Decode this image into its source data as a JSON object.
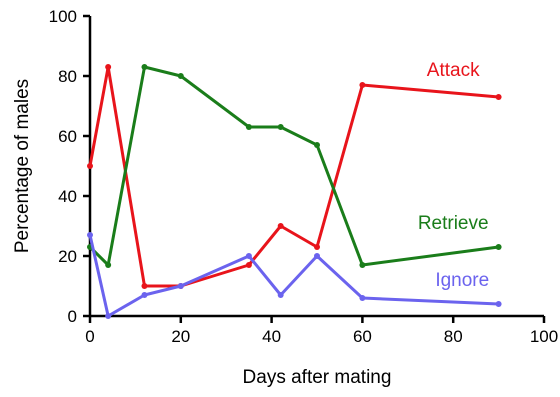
{
  "chart_data": {
    "type": "line",
    "xlabel": "Days after mating",
    "ylabel": "Percentage of males",
    "xlim": [
      0,
      100
    ],
    "ylim": [
      0,
      100
    ],
    "xticks": [
      0,
      20,
      40,
      60,
      80,
      100
    ],
    "yticks": [
      0,
      20,
      40,
      60,
      80,
      100
    ],
    "grid": false,
    "series": [
      {
        "name": "Attack",
        "color": "#e8141b",
        "x": [
          0,
          4,
          12,
          20,
          35,
          42,
          50,
          60,
          90
        ],
        "y": [
          50,
          83,
          10,
          10,
          17,
          30,
          23,
          77,
          73
        ],
        "label_at": [
          80,
          80
        ]
      },
      {
        "name": "Retrieve",
        "color": "#1a7d1a",
        "x": [
          0,
          4,
          12,
          20,
          35,
          42,
          50,
          60,
          90
        ],
        "y": [
          23,
          17,
          83,
          80,
          63,
          63,
          57,
          17,
          23
        ],
        "label_at": [
          80,
          29
        ]
      },
      {
        "name": "Ignore",
        "color": "#6b63ee",
        "x": [
          0,
          4,
          12,
          20,
          35,
          42,
          50,
          60,
          90
        ],
        "y": [
          27,
          0,
          7,
          10,
          20,
          7,
          20,
          6,
          4
        ],
        "label_at": [
          82,
          10
        ]
      }
    ]
  }
}
